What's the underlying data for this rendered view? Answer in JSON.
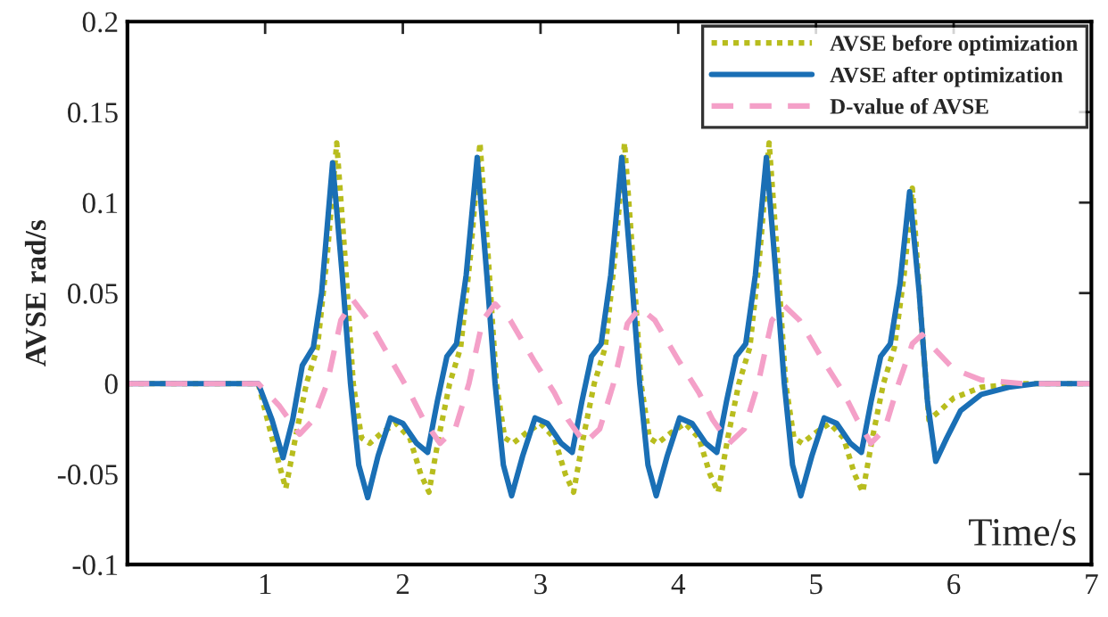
{
  "chart_data": {
    "type": "line",
    "xlabel": "Time/s",
    "ylabel": "AVSE rad/s",
    "xlim": [
      0,
      7
    ],
    "xticks": [
      1,
      2,
      3,
      4,
      5,
      6,
      7
    ],
    "ylim": [
      -0.1,
      0.2
    ],
    "yticks": [
      -0.1,
      -0.05,
      0,
      0.05,
      0.1,
      0.15,
      0.2
    ],
    "legend": "top right",
    "grid": false,
    "series": [
      {
        "name": "AVSE before optimization",
        "color": "#b8bd1e",
        "line_style": "dotted",
        "x": [
          0,
          0.95,
          1.05,
          1.15,
          1.22,
          1.3,
          1.38,
          1.45,
          1.52,
          1.58,
          1.64,
          1.7,
          1.76,
          1.85,
          1.95,
          2.05,
          2.13,
          2.19,
          2.26,
          2.34,
          2.42,
          2.49,
          2.56,
          2.62,
          2.68,
          2.74,
          2.8,
          2.9,
          3.0,
          3.1,
          3.18,
          3.24,
          3.31,
          3.39,
          3.47,
          3.54,
          3.61,
          3.67,
          3.73,
          3.79,
          3.85,
          3.95,
          4.05,
          4.15,
          4.23,
          4.29,
          4.36,
          4.44,
          4.52,
          4.59,
          4.66,
          4.72,
          4.78,
          4.84,
          4.9,
          5.0,
          5.1,
          5.2,
          5.28,
          5.34,
          5.41,
          5.49,
          5.57,
          5.64,
          5.7,
          5.76,
          5.82,
          5.9,
          6.0,
          6.2,
          6.5,
          7
        ],
        "values": [
          0,
          0,
          -0.03,
          -0.058,
          -0.03,
          0,
          0.02,
          0.07,
          0.133,
          0.07,
          0,
          -0.03,
          -0.033,
          -0.027,
          -0.022,
          -0.03,
          -0.05,
          -0.06,
          -0.03,
          0,
          0.02,
          0.07,
          0.133,
          0.07,
          0,
          -0.03,
          -0.033,
          -0.027,
          -0.022,
          -0.03,
          -0.05,
          -0.06,
          -0.03,
          0,
          0.02,
          0.07,
          0.133,
          0.07,
          0,
          -0.03,
          -0.033,
          -0.027,
          -0.022,
          -0.03,
          -0.05,
          -0.06,
          -0.03,
          0,
          0.02,
          0.07,
          0.133,
          0.07,
          0,
          -0.03,
          -0.033,
          -0.027,
          -0.022,
          -0.03,
          -0.05,
          -0.06,
          -0.03,
          0,
          0.02,
          0.06,
          0.108,
          0.04,
          -0.02,
          -0.015,
          -0.008,
          -0.002,
          0,
          0
        ]
      },
      {
        "name": "AVSE after optimization",
        "color": "#1a6fb5",
        "line_style": "solid",
        "x": [
          0,
          0.95,
          1.05,
          1.13,
          1.2,
          1.27,
          1.35,
          1.41,
          1.49,
          1.56,
          1.62,
          1.68,
          1.745,
          1.82,
          1.91,
          2.0,
          2.1,
          2.18,
          2.25,
          2.32,
          2.39,
          2.46,
          2.54,
          2.61,
          2.67,
          2.73,
          2.79,
          2.87,
          2.96,
          3.05,
          3.15,
          3.23,
          3.3,
          3.37,
          3.44,
          3.51,
          3.59,
          3.66,
          3.72,
          3.78,
          3.84,
          3.92,
          4.01,
          4.1,
          4.2,
          4.28,
          4.35,
          4.42,
          4.49,
          4.56,
          4.64,
          4.71,
          4.77,
          4.83,
          4.89,
          4.97,
          5.06,
          5.15,
          5.25,
          5.33,
          5.4,
          5.47,
          5.54,
          5.61,
          5.68,
          5.75,
          5.81,
          5.87,
          5.95,
          6.05,
          6.2,
          6.4,
          6.6,
          7
        ],
        "values": [
          0,
          0,
          -0.02,
          -0.041,
          -0.02,
          0.01,
          0.02,
          0.05,
          0.122,
          0.06,
          0,
          -0.045,
          -0.063,
          -0.04,
          -0.019,
          -0.022,
          -0.033,
          -0.038,
          -0.01,
          0.015,
          0.022,
          0.06,
          0.125,
          0.06,
          0,
          -0.045,
          -0.062,
          -0.04,
          -0.019,
          -0.022,
          -0.033,
          -0.038,
          -0.01,
          0.015,
          0.022,
          0.06,
          0.125,
          0.06,
          0,
          -0.045,
          -0.062,
          -0.04,
          -0.019,
          -0.022,
          -0.033,
          -0.038,
          -0.01,
          0.015,
          0.022,
          0.06,
          0.125,
          0.06,
          0,
          -0.045,
          -0.062,
          -0.04,
          -0.019,
          -0.022,
          -0.033,
          -0.038,
          -0.01,
          0.015,
          0.022,
          0.055,
          0.106,
          0.05,
          -0.01,
          -0.043,
          -0.03,
          -0.015,
          -0.006,
          -0.002,
          0,
          0
        ]
      },
      {
        "name": "D-value of AVSE",
        "color": "#f4a0c8",
        "line_style": "dashed",
        "x": [
          0,
          0.95,
          1.1,
          1.25,
          1.35,
          1.45,
          1.55,
          1.64,
          1.75,
          1.9,
          2.05,
          2.15,
          2.27,
          2.38,
          2.48,
          2.58,
          2.67,
          2.78,
          2.95,
          3.1,
          3.2,
          3.32,
          3.43,
          3.53,
          3.63,
          3.72,
          3.83,
          4.0,
          4.15,
          4.25,
          4.37,
          4.48,
          4.58,
          4.68,
          4.77,
          4.88,
          5.05,
          5.2,
          5.3,
          5.4,
          5.5,
          5.6,
          5.7,
          5.77,
          5.85,
          6.0,
          6.2,
          6.5,
          7
        ],
        "values": [
          0,
          0,
          -0.012,
          -0.028,
          -0.02,
          0,
          0.035,
          0.046,
          0.035,
          0.015,
          -0.005,
          -0.02,
          -0.033,
          -0.025,
          0,
          0.035,
          0.044,
          0.035,
          0.013,
          -0.005,
          -0.02,
          -0.033,
          -0.025,
          0,
          0.033,
          0.042,
          0.035,
          0.013,
          -0.005,
          -0.02,
          -0.033,
          -0.025,
          0,
          0.035,
          0.043,
          0.035,
          0.013,
          -0.005,
          -0.02,
          -0.033,
          -0.025,
          0,
          0.022,
          0.027,
          0.02,
          0.008,
          0.002,
          0,
          0
        ]
      }
    ]
  }
}
